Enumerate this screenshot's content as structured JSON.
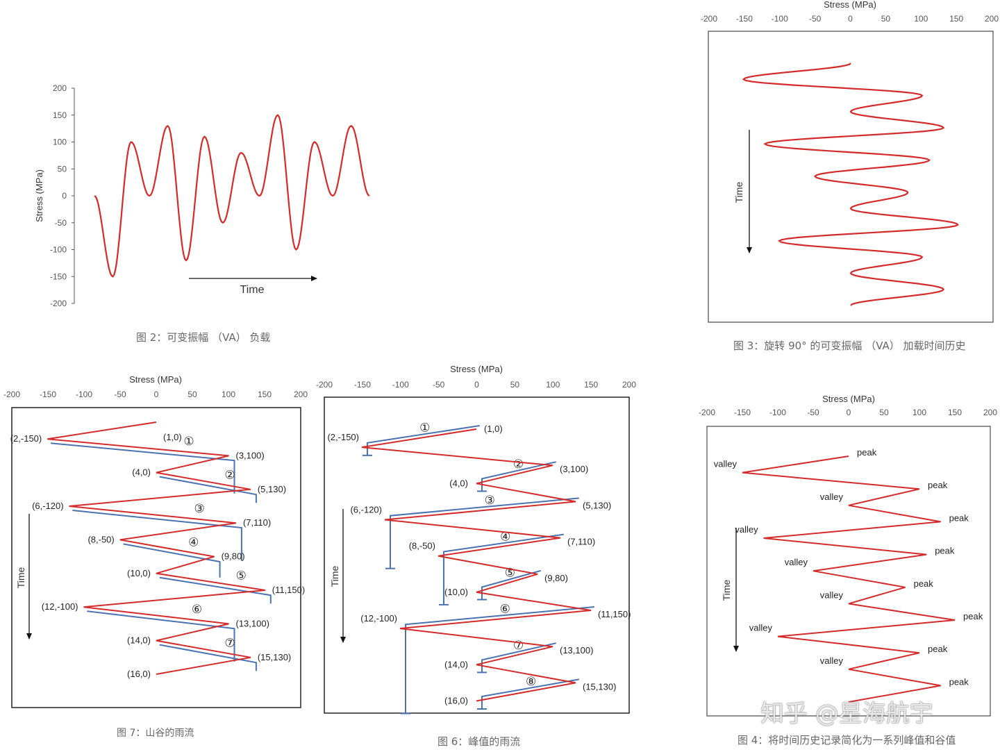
{
  "colors": {
    "red": "#d42a2a",
    "blue": "#4a72b0",
    "axis": "#555555"
  },
  "chart_data": [
    {
      "id": "fig2",
      "type": "line",
      "title": "",
      "xlabel": "Time",
      "ylabel": "Stress (MPa)",
      "ylim": [
        -200,
        200
      ],
      "yticks": [
        "200",
        "150",
        "100",
        "50",
        "0",
        "-50",
        "-100",
        "-150",
        "-200"
      ],
      "x": [
        0,
        1,
        2,
        3,
        4,
        5,
        6,
        7,
        8,
        9,
        10,
        11,
        12,
        13,
        14,
        15
      ],
      "values": [
        0,
        -150,
        100,
        0,
        130,
        -120,
        110,
        -50,
        80,
        0,
        150,
        -100,
        100,
        0,
        130,
        0
      ],
      "caption": "图 2：可变振幅 （VA） 负载"
    },
    {
      "id": "fig3",
      "type": "line",
      "orientation": "rotated-90",
      "xlabel": "Stress (MPa)",
      "ylabel": "Time",
      "xlim": [
        -200,
        200
      ],
      "xticks": [
        "-200",
        "-150",
        "-100",
        "-50",
        "0",
        "50",
        "100",
        "150",
        "200"
      ],
      "values": [
        0,
        -150,
        100,
        0,
        130,
        -120,
        110,
        -50,
        80,
        0,
        150,
        -100,
        100,
        0,
        130,
        0
      ],
      "caption": "图 3：旋转 90° 的可变振幅 （VA） 加载时间历史"
    },
    {
      "id": "fig7",
      "type": "line",
      "xlabel": "Stress (MPa)",
      "ylabel": "Time",
      "xlim": [
        -200,
        200
      ],
      "xticks": [
        "-200",
        "-150",
        "-100",
        "-50",
        "0",
        "50",
        "100",
        "150",
        "200"
      ],
      "points": [
        {
          "t": 1,
          "s": 0,
          "label": "(1,0)"
        },
        {
          "t": 2,
          "s": -150,
          "label": "(2,-150)"
        },
        {
          "t": 3,
          "s": 100,
          "label": "(3,100)"
        },
        {
          "t": 4,
          "s": 0,
          "label": "(4,0)"
        },
        {
          "t": 5,
          "s": 130,
          "label": "(5,130)"
        },
        {
          "t": 6,
          "s": -120,
          "label": "(6,-120)"
        },
        {
          "t": 7,
          "s": 110,
          "label": "(7,110)"
        },
        {
          "t": 8,
          "s": -50,
          "label": "(8,-50)"
        },
        {
          "t": 9,
          "s": 80,
          "label": "(9,80)"
        },
        {
          "t": 10,
          "s": 0,
          "label": "(10,0)"
        },
        {
          "t": 11,
          "s": 150,
          "label": "(11,150)"
        },
        {
          "t": 12,
          "s": -100,
          "label": "(12,-100)"
        },
        {
          "t": 13,
          "s": 100,
          "label": "(13,100)"
        },
        {
          "t": 14,
          "s": 0,
          "label": "(14,0)"
        },
        {
          "t": 15,
          "s": 130,
          "label": "(15,130)"
        },
        {
          "t": 16,
          "s": 0,
          "label": "(16,0)"
        }
      ],
      "rainflow": [
        {
          "num": "①",
          "from": 2,
          "hit": 3,
          "stop": 5
        },
        {
          "num": "②",
          "from": 4,
          "hit": 5
        },
        {
          "num": "③",
          "from": 6,
          "hit": 7,
          "stop": 9
        },
        {
          "num": "④",
          "from": 8,
          "hit": 9,
          "stop": 10
        },
        {
          "num": "⑤",
          "from": 10,
          "hit": 11
        },
        {
          "num": "⑥",
          "from": 12,
          "hit": 13,
          "stop": 15
        },
        {
          "num": "⑦",
          "from": 14,
          "hit": 15
        }
      ],
      "caption": "图 7：山谷的雨流"
    },
    {
      "id": "fig6",
      "type": "line",
      "xlabel": "Stress (MPa)",
      "ylabel": "Time",
      "xlim": [
        -200,
        200
      ],
      "xticks": [
        "-200",
        "-150",
        "-100",
        "-50",
        "0",
        "50",
        "100",
        "150",
        "200"
      ],
      "points": [
        {
          "t": 1,
          "s": 0,
          "label": "(1,0)"
        },
        {
          "t": 2,
          "s": -150,
          "label": "(2,-150)"
        },
        {
          "t": 3,
          "s": 100,
          "label": "(3,100)"
        },
        {
          "t": 4,
          "s": 0,
          "label": "(4,0)"
        },
        {
          "t": 5,
          "s": 130,
          "label": "(5,130)"
        },
        {
          "t": 6,
          "s": -120,
          "label": "(6,-120)"
        },
        {
          "t": 7,
          "s": 110,
          "label": "(7,110)"
        },
        {
          "t": 8,
          "s": -50,
          "label": "(8,-50)"
        },
        {
          "t": 9,
          "s": 80,
          "label": "(9,80)"
        },
        {
          "t": 10,
          "s": 0,
          "label": "(10,0)"
        },
        {
          "t": 11,
          "s": 150,
          "label": "(11,150)"
        },
        {
          "t": 12,
          "s": -100,
          "label": "(12,-100)"
        },
        {
          "t": 13,
          "s": 100,
          "label": "(13,100)"
        },
        {
          "t": 14,
          "s": 0,
          "label": "(14,0)"
        },
        {
          "t": 15,
          "s": 130,
          "label": "(15,130)"
        },
        {
          "t": 16,
          "s": 0,
          "label": "(16,0)"
        }
      ],
      "rainflow": [
        {
          "num": "①",
          "from": 1,
          "hit": 2
        },
        {
          "num": "②",
          "from": 3,
          "hit": 4
        },
        {
          "num": "③",
          "from": 5,
          "hit": 6,
          "stop": 8
        },
        {
          "num": "④",
          "from": 7,
          "hit": 8,
          "stop": 10
        },
        {
          "num": "⑤",
          "from": 9,
          "hit": 10
        },
        {
          "num": "⑥",
          "from": 11,
          "hit": 12,
          "stop": 16
        },
        {
          "num": "⑦",
          "from": 13,
          "hit": 14
        },
        {
          "num": "⑧",
          "from": 15,
          "hit": 16
        }
      ],
      "caption": "图 6：峰值的雨流"
    },
    {
      "id": "fig4",
      "type": "line",
      "xlabel": "Stress (MPa)",
      "ylabel": "Time",
      "xlim": [
        -200,
        200
      ],
      "xticks": [
        "-200",
        "-150",
        "-100",
        "-50",
        "0",
        "50",
        "100",
        "150",
        "200"
      ],
      "values": [
        0,
        -150,
        100,
        0,
        130,
        -120,
        110,
        -50,
        80,
        0,
        150,
        -100,
        100,
        0,
        130,
        0
      ],
      "annotations": [
        "peak",
        "valley",
        "peak",
        "valley",
        "peak",
        "valley",
        "peak",
        "valley",
        "peak",
        "valley",
        "peak",
        "valley",
        "peak",
        "valley",
        "peak"
      ],
      "caption": "图 4：将时间历史记录简化为一系列峰值和谷值"
    }
  ],
  "watermark": "知乎 @星海航宇"
}
